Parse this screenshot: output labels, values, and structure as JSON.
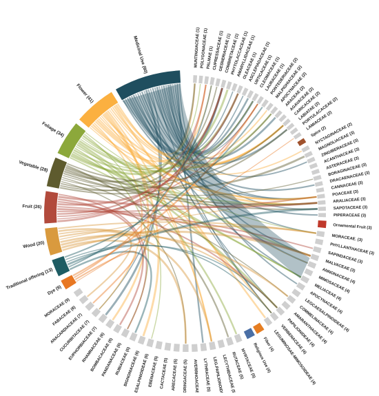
{
  "chart_data": {
    "type": "chord",
    "title": "",
    "uses": [
      {
        "label": "Medicinal Use (60)",
        "value": 60,
        "color": "#1f4e5f"
      },
      {
        "label": "Flower (41)",
        "value": 41,
        "color": "#fbb040"
      },
      {
        "label": "Foliage (34)",
        "value": 34,
        "color": "#8ca83b"
      },
      {
        "label": "Vegetable (28)",
        "value": 28,
        "color": "#5e5b2e"
      },
      {
        "label": "Fruit (26)",
        "value": 26,
        "color": "#b24a3c"
      },
      {
        "label": "Wood (20)",
        "value": 20,
        "color": "#d99a3e"
      },
      {
        "label": "Traditional offering (13)",
        "value": 13,
        "color": "#1e5c63"
      },
      {
        "label": "Dye (9)",
        "value": 9,
        "color": "#e87722"
      },
      {
        "label": "Ornamental Fruit (3)",
        "value": 3,
        "color": "#c0392b"
      },
      {
        "label": "Religious Use (4)",
        "value": 4,
        "color": "#4a6fa5"
      },
      {
        "label": "Fiber (4)",
        "value": 4,
        "color": "#e67e22"
      },
      {
        "label": "Spice (2)",
        "value": 2,
        "color": "#a0522d"
      }
    ],
    "families_upper": [
      "MUNTINGIACEAE (1)",
      "POLYGONACEAE (1)",
      "PALMAE (1)",
      "CUPRESSACEAE (1)",
      "GESNERIACEAE (1)",
      "COMBRETACEAE (1)",
      "PHYTOLACCACEAE (1)",
      "AMARYLLIDACEAE (1)",
      "OLEACEAE (1)",
      "ASCLEPIADACEAE (1)",
      "URTICACEAE (1)",
      "CLEOMACEAE (1)",
      "LAURACEAE (1)",
      "PONTEDERIACEAE (2)",
      "MALPIGHIACEAE (2)",
      "APOCYNACEAE (2)",
      "ARACEAE (2)",
      "AGAVACEAE (2)",
      "CARICACEAE (2)",
      "LABIATAE (2)",
      "PORTULACACEAE (2)",
      "LAMIACEAE (2)"
    ],
    "families_right": [
      "NYCTAGINACEAE (2)",
      "MAGNOLIACEAE (3)",
      "ZINGIBERACEAE (3)",
      "ACANTHACEAE (3)",
      "ASTERACEAE (3)",
      "BORAGINACEAE (3)",
      "DRACAENACEAE (3)",
      "CANNACEAE (3)",
      "POACEAE (3)",
      "ARALIACEAE (3)",
      "SAPOTACEAE (3)",
      "PIPERACEAE (3)"
    ],
    "families_lower_right": [
      "MORACEAE. (3)",
      "PHYLLANTHACEAE (3)",
      "SAPINDACEAE (3)",
      "MALVACEAE (3)",
      "ANNONACEAE (4)",
      "MIMOSACEAE (4)",
      "MELIACEAE (4)",
      "APOCYNACEAE (4)",
      "LEGCAESALPINOIDEAE (4)",
      "COMMELINACEAE (4)",
      "AMARANTHACEAE (4)",
      "PAPILIONIDEAE (4)",
      "VERBENACEAE (4)",
      "LEGUMINOSAE-MIMOSOIDEAE (4)"
    ],
    "families_bottom": [
      "MYRTACEAE (5)",
      "RUTACEAE (5)",
      "LECYTHIDACEAE (5)",
      "LEG.PAPILIONOIDEAE (5)",
      "LYTHRACEAE (5)",
      "AVERRHOACEAE (5)",
      "MORINGACEAE (5)",
      "ARECACEAE (5)",
      "CACTACEAE (5)",
      "EBENACEAE (5)",
      "LEG.CAESALPINIOIDEAE (6)",
      "BIGNONIACEAE (6)",
      "RUBIACEAE (6)",
      "PANDANACEAE (6)",
      "BOMBACACEAE (6)",
      "RHAMNACEAE (6)",
      "EUPHORBIACEAE (7)",
      "CUCURBITACEAE (7)",
      "ANACARDIACEAE (7)",
      "FABACEAE (8)",
      "MORACEAE (9)"
    ],
    "link_colors": [
      "#1f4e5f",
      "#fbb040",
      "#8ca83b",
      "#5e5b2e",
      "#b24a3c",
      "#d99a3e",
      "#1e5c63",
      "#e87722"
    ],
    "family_segment_color": "#cfcfcf"
  }
}
